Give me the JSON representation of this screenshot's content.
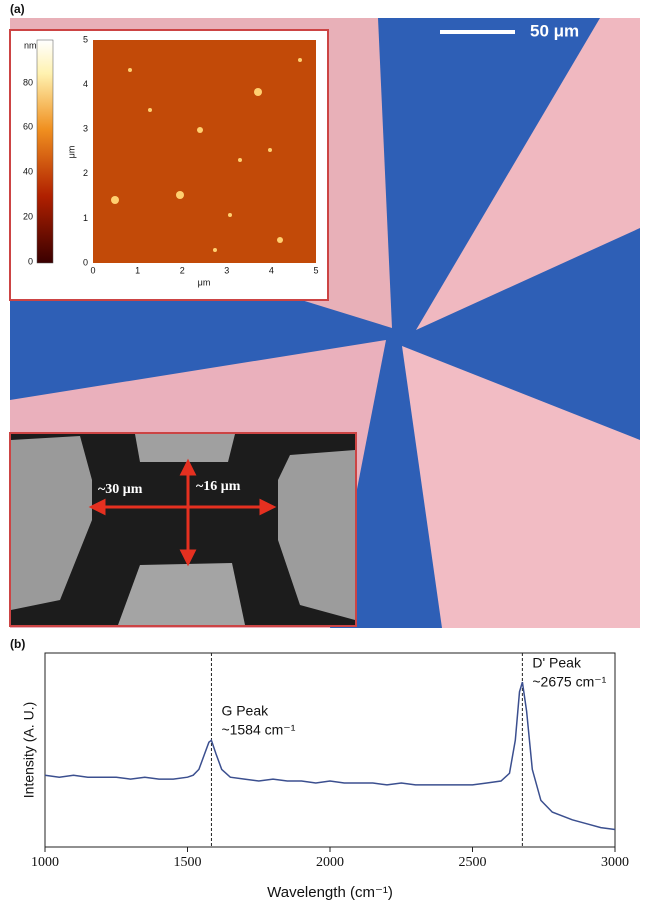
{
  "panel_a": {
    "label": "(a)",
    "scale_bar": "50 μm",
    "afm_inset": {
      "colorbar_unit": "nm",
      "colorbar_ticks": [
        "80",
        "60",
        "40",
        "20",
        "0"
      ],
      "x_ticks": [
        "0",
        "1",
        "2",
        "3",
        "4",
        "5"
      ],
      "y_ticks": [
        "5",
        "4",
        "3",
        "2",
        "1",
        "0"
      ],
      "x_label": "μm",
      "y_label": "μm"
    },
    "sem_inset": {
      "height_label": "~16 μm",
      "width_label": "~30 μm"
    }
  },
  "chart_data": {
    "type": "line",
    "panel_label": "(b)",
    "x_label": "Wavelength (cm⁻¹)",
    "y_label": "Intensity (A. U.)",
    "x": [
      1000,
      1050,
      1100,
      1150,
      1200,
      1250,
      1300,
      1350,
      1400,
      1450,
      1500,
      1520,
      1540,
      1560,
      1575,
      1584,
      1600,
      1620,
      1650,
      1700,
      1750,
      1800,
      1850,
      1900,
      1950,
      2000,
      2050,
      2100,
      2150,
      2200,
      2250,
      2300,
      2350,
      2400,
      2450,
      2500,
      2550,
      2600,
      2630,
      2650,
      2665,
      2675,
      2690,
      2710,
      2740,
      2780,
      2850,
      2900,
      2950,
      3000
    ],
    "series": [
      {
        "color": "#3b4f8f",
        "values": [
          0.37,
          0.36,
          0.37,
          0.36,
          0.36,
          0.36,
          0.35,
          0.36,
          0.35,
          0.35,
          0.36,
          0.37,
          0.4,
          0.48,
          0.54,
          0.55,
          0.48,
          0.4,
          0.36,
          0.35,
          0.34,
          0.35,
          0.34,
          0.34,
          0.33,
          0.34,
          0.33,
          0.33,
          0.33,
          0.32,
          0.33,
          0.32,
          0.32,
          0.32,
          0.32,
          0.32,
          0.33,
          0.34,
          0.38,
          0.55,
          0.8,
          0.85,
          0.7,
          0.4,
          0.24,
          0.18,
          0.14,
          0.12,
          0.1,
          0.09
        ]
      }
    ],
    "xlim": [
      1000,
      3000
    ],
    "xticks": [
      1000,
      1500,
      2000,
      2500,
      3000
    ],
    "ylim": [
      0,
      1
    ],
    "annotations": [
      {
        "x": 1584,
        "lines": [
          "G Peak",
          "~1584 cm⁻¹"
        ]
      },
      {
        "x": 2675,
        "lines": [
          "D' Peak",
          "~2675 cm⁻¹"
        ]
      }
    ]
  }
}
